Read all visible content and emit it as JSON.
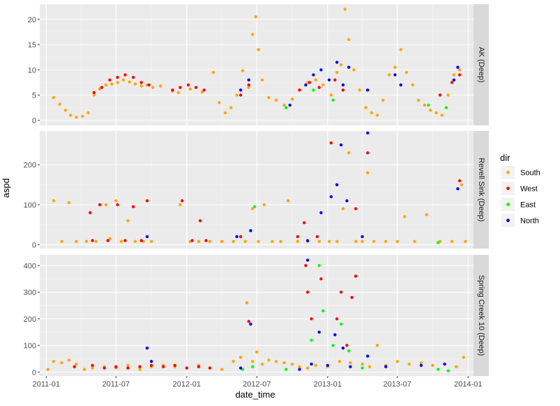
{
  "chart_data": {
    "type": "scatter",
    "xlabel": "date_time",
    "ylabel": "aspd",
    "x_range": [
      "2010-12-15",
      "2014-01-15"
    ],
    "x_ticks": [
      "2011-01",
      "2011-07",
      "2012-01",
      "2012-07",
      "2013-01",
      "2013-07",
      "2014-01"
    ],
    "grid": true,
    "legend": {
      "title": "dir",
      "position": "right",
      "entries": [
        {
          "name": "South",
          "color": "#FFA500"
        },
        {
          "name": "West",
          "color": "#FF0000"
        },
        {
          "name": "East",
          "color": "#00FF00"
        },
        {
          "name": "North",
          "color": "#0000FF"
        }
      ]
    },
    "panels": [
      {
        "strip": "AK (Deep)",
        "ylim": [
          -1,
          23
        ],
        "y_ticks": [
          0,
          5,
          10,
          15,
          20
        ],
        "series": [
          {
            "name": "South",
            "x": [
              "2011-01-20",
              "2011-02-05",
              "2011-02-20",
              "2011-03-05",
              "2011-03-20",
              "2011-04-05",
              "2011-04-20",
              "2011-05-05",
              "2011-05-20",
              "2011-06-05",
              "2011-06-20",
              "2011-07-05",
              "2011-07-20",
              "2011-08-05",
              "2011-08-20",
              "2011-09-05",
              "2011-09-20",
              "2011-10-05",
              "2011-10-25",
              "2011-11-25",
              "2011-12-10",
              "2012-01-10",
              "2012-02-10",
              "2012-03-10",
              "2012-03-25",
              "2012-04-10",
              "2012-04-25",
              "2012-05-10",
              "2012-05-25",
              "2012-06-10",
              "2012-06-20",
              "2012-06-28",
              "2012-07-05",
              "2012-07-15",
              "2012-08-01",
              "2012-08-20",
              "2012-09-10",
              "2012-10-01",
              "2012-10-20",
              "2012-11-10",
              "2012-12-01",
              "2012-12-20",
              "2013-01-10",
              "2013-01-25",
              "2013-02-05",
              "2013-02-15",
              "2013-02-25",
              "2013-03-10",
              "2013-03-25",
              "2013-04-10",
              "2013-04-25",
              "2013-05-10",
              "2013-05-25",
              "2013-06-10",
              "2013-06-25",
              "2013-07-10",
              "2013-07-25",
              "2013-08-10",
              "2013-08-25",
              "2013-09-10",
              "2013-09-25",
              "2013-10-10",
              "2013-10-25",
              "2013-11-10",
              "2013-11-25",
              "2013-12-10"
            ],
            "y": [
              4.5,
              3.2,
              2.0,
              1.0,
              0.6,
              0.8,
              1.5,
              5.0,
              6.2,
              7.0,
              7.2,
              7.5,
              8.0,
              7.6,
              7.2,
              6.8,
              7.0,
              6.5,
              6.8,
              5.8,
              5.5,
              6.2,
              5.6,
              9.5,
              3.5,
              1.5,
              2.5,
              5.0,
              9.8,
              6.5,
              17.0,
              20.5,
              14.0,
              8.0,
              4.5,
              4.0,
              3.0,
              4.2,
              6.0,
              7.5,
              8.0,
              7.0,
              5.0,
              9.5,
              11.0,
              22.0,
              16.0,
              10.0,
              6.0,
              2.5,
              1.5,
              1.0,
              4.0,
              9.0,
              10.5,
              14.0,
              9.5,
              7.0,
              4.0,
              3.0,
              2.0,
              1.5,
              1.0,
              5.0,
              9.0,
              10.0
            ]
          },
          {
            "name": "West",
            "x": [
              "2011-05-05",
              "2011-05-25",
              "2011-06-15",
              "2011-07-05",
              "2011-07-25",
              "2011-08-15",
              "2011-09-05",
              "2011-09-25",
              "2011-11-25",
              "2011-12-15",
              "2012-01-05",
              "2012-01-25",
              "2012-02-15",
              "2012-05-20",
              "2012-06-10",
              "2012-10-20",
              "2012-11-15",
              "2012-12-10",
              "2013-01-20",
              "2013-02-10",
              "2013-10-20",
              "2013-11-20",
              "2013-12-10"
            ],
            "y": [
              5.5,
              6.5,
              8.0,
              8.5,
              9.0,
              8.5,
              7.5,
              7.0,
              6.0,
              6.5,
              7.0,
              6.5,
              6.0,
              5.0,
              7.0,
              6.0,
              7.5,
              6.5,
              8.0,
              6.0,
              5.0,
              7.5,
              9.0
            ]
          },
          {
            "name": "East",
            "x": [
              "2012-09-15",
              "2012-11-25",
              "2013-01-15",
              "2013-09-20",
              "2013-11-05"
            ],
            "y": [
              2.5,
              6.0,
              4.0,
              3.0,
              2.5
            ]
          },
          {
            "name": "North",
            "x": [
              "2012-05-20",
              "2012-06-10",
              "2012-09-25",
              "2012-11-05",
              "2012-11-25",
              "2012-12-15",
              "2013-01-05",
              "2013-01-25",
              "2013-02-10",
              "2013-02-25",
              "2013-04-15",
              "2013-06-25",
              "2013-07-10",
              "2013-11-25",
              "2013-12-05"
            ],
            "y": [
              6.0,
              8.0,
              3.0,
              7.0,
              9.0,
              10.0,
              8.0,
              11.5,
              7.0,
              10.5,
              6.0,
              9.0,
              7.0,
              8.0,
              10.5
            ]
          }
        ]
      },
      {
        "strip": "Revell Sink (Deep)",
        "ylim": [
          -10,
          285
        ],
        "y_ticks": [
          0,
          100,
          200
        ],
        "series": [
          {
            "name": "South",
            "x": [
              "2011-01-20",
              "2011-02-10",
              "2011-03-01",
              "2011-03-20",
              "2011-04-15",
              "2011-05-10",
              "2011-06-05",
              "2011-06-15",
              "2011-07-01",
              "2011-07-15",
              "2011-08-01",
              "2011-08-20",
              "2011-09-10",
              "2011-10-01",
              "2011-12-15",
              "2012-01-10",
              "2012-02-01",
              "2012-03-01",
              "2012-04-01",
              "2012-05-01",
              "2012-06-01",
              "2012-06-20",
              "2012-07-05",
              "2012-07-20",
              "2012-08-10",
              "2012-09-01",
              "2012-09-20",
              "2012-10-15",
              "2012-11-10",
              "2012-12-10",
              "2013-01-05",
              "2013-01-25",
              "2013-02-10",
              "2013-02-25",
              "2013-03-15",
              "2013-04-01",
              "2013-04-15",
              "2013-05-01",
              "2013-06-01",
              "2013-07-01",
              "2013-07-20",
              "2013-08-15",
              "2013-09-15",
              "2013-10-20",
              "2013-11-20",
              "2013-12-15",
              "2013-12-25"
            ],
            "y": [
              110,
              8,
              105,
              8,
              8,
              8,
              100,
              15,
              110,
              8,
              60,
              8,
              8,
              8,
              100,
              8,
              8,
              8,
              8,
              8,
              8,
              90,
              8,
              100,
              8,
              8,
              110,
              8,
              8,
              8,
              8,
              8,
              90,
              230,
              8,
              8,
              180,
              8,
              8,
              8,
              70,
              8,
              75,
              8,
              8,
              150,
              8
            ]
          },
          {
            "name": "West",
            "x": [
              "2011-04-25",
              "2011-05-01",
              "2011-05-20",
              "2011-06-10",
              "2011-07-05",
              "2011-07-25",
              "2011-08-15",
              "2011-09-05",
              "2011-09-20",
              "2011-12-20",
              "2012-01-15",
              "2012-02-05",
              "2012-02-20",
              "2012-05-20",
              "2012-10-15",
              "2012-11-01",
              "2012-12-05",
              "2013-01-10",
              "2013-03-15",
              "2013-04-15",
              "2013-12-10"
            ],
            "y": [
              80,
              10,
              100,
              10,
              100,
              10,
              95,
              10,
              110,
              110,
              10,
              60,
              10,
              20,
              20,
              55,
              20,
              255,
              90,
              230,
              160
            ]
          },
          {
            "name": "East",
            "x": [
              "2012-06-25",
              "2013-10-15"
            ],
            "y": [
              95,
              5
            ]
          },
          {
            "name": "North",
            "x": [
              "2011-09-20",
              "2012-05-10",
              "2012-06-15",
              "2012-11-10",
              "2012-12-15",
              "2013-01-10",
              "2013-01-25",
              "2013-02-05",
              "2013-02-20",
              "2013-04-01",
              "2013-04-15",
              "2013-12-05"
            ],
            "y": [
              20,
              20,
              35,
              10,
              80,
              120,
              150,
              250,
              110,
              20,
              280,
              140
            ]
          }
        ]
      },
      {
        "strip": "Spring Creek 10 (Deep)",
        "ylim": [
          -15,
          440
        ],
        "y_ticks": [
          0,
          100,
          200,
          300,
          400
        ],
        "series": [
          {
            "name": "South",
            "x": [
              "2011-01-05",
              "2011-01-20",
              "2011-02-10",
              "2011-03-01",
              "2011-03-20",
              "2011-04-10",
              "2011-05-01",
              "2011-06-01",
              "2011-07-01",
              "2011-08-01",
              "2011-09-01",
              "2011-10-01",
              "2011-11-01",
              "2011-12-01",
              "2012-01-01",
              "2012-02-01",
              "2012-03-01",
              "2012-04-01",
              "2012-05-01",
              "2012-05-20",
              "2012-06-05",
              "2012-06-20",
              "2012-07-01",
              "2012-07-15",
              "2012-08-01",
              "2012-08-20",
              "2012-09-10",
              "2012-10-01",
              "2012-10-20",
              "2012-11-10",
              "2012-12-01",
              "2013-01-01",
              "2013-02-01",
              "2013-03-01",
              "2013-04-01",
              "2013-04-20",
              "2013-05-10",
              "2013-06-01",
              "2013-07-01",
              "2013-08-01",
              "2013-09-01",
              "2013-10-01",
              "2013-11-01",
              "2013-12-01",
              "2013-12-20"
            ],
            "y": [
              10,
              40,
              35,
              45,
              30,
              10,
              15,
              20,
              15,
              25,
              10,
              20,
              25,
              20,
              15,
              25,
              15,
              10,
              40,
              55,
              260,
              40,
              75,
              30,
              45,
              40,
              35,
              30,
              20,
              15,
              25,
              20,
              40,
              35,
              30,
              20,
              100,
              25,
              40,
              30,
              35,
              25,
              30,
              20,
              55
            ]
          },
          {
            "name": "West",
            "x": [
              "2011-03-15",
              "2011-05-01",
              "2011-06-01",
              "2011-07-01",
              "2011-08-01",
              "2011-09-01",
              "2011-10-01",
              "2011-11-01",
              "2011-12-01",
              "2012-01-01",
              "2012-02-01",
              "2012-03-01",
              "2012-06-10",
              "2012-11-05",
              "2012-11-10",
              "2012-11-20",
              "2012-12-15",
              "2013-01-25",
              "2013-02-05",
              "2013-02-20",
              "2013-03-05",
              "2013-03-15"
            ],
            "y": [
              20,
              25,
              15,
              20,
              15,
              20,
              25,
              20,
              25,
              15,
              20,
              15,
              190,
              400,
              300,
              200,
              350,
              200,
              300,
              100,
              280,
              360
            ]
          },
          {
            "name": "East",
            "x": [
              "2012-05-25",
              "2012-06-20",
              "2012-09-15",
              "2012-11-20",
              "2012-12-10",
              "2012-12-20",
              "2013-01-15",
              "2013-02-05",
              "2013-02-25",
              "2013-04-01",
              "2013-10-15",
              "2013-11-10"
            ],
            "y": [
              10,
              20,
              10,
              120,
              400,
              230,
              100,
              180,
              80,
              15,
              10,
              5
            ]
          },
          {
            "name": "North",
            "x": [
              "2011-09-20",
              "2011-10-01",
              "2012-05-20",
              "2012-06-15",
              "2012-10-20",
              "2012-11-10",
              "2012-11-20",
              "2012-12-10",
              "2013-01-01",
              "2013-01-20",
              "2013-02-10",
              "2013-03-01",
              "2013-04-15",
              "2013-06-01",
              "2013-09-01",
              "2013-11-01"
            ],
            "y": [
              90,
              40,
              15,
              180,
              10,
              420,
              30,
              150,
              25,
              140,
              90,
              20,
              60,
              20,
              25,
              30
            ]
          }
        ]
      }
    ]
  }
}
